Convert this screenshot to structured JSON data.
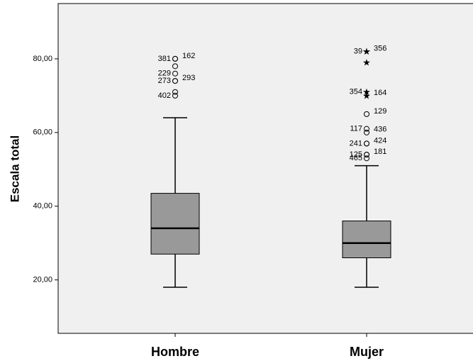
{
  "chart_data": {
    "type": "box",
    "y_label": "Escala total",
    "categories": [
      "Hombre",
      "Mujer"
    ],
    "series": [
      {
        "name": "Hombre",
        "whislo": 18,
        "q1": 27,
        "median": 34,
        "q3": 43.5,
        "whishi": 64,
        "outliers": [
          {
            "value": 80,
            "label": "162"
          },
          {
            "value": 80,
            "label": "381"
          },
          {
            "value": 78
          },
          {
            "value": 76,
            "label": "229"
          },
          {
            "value": 74,
            "label": "293"
          },
          {
            "value": 74,
            "label": "273"
          },
          {
            "value": 71
          },
          {
            "value": 70,
            "label": "402"
          }
        ],
        "extremes": []
      },
      {
        "name": "Mujer",
        "whislo": 18,
        "q1": 26,
        "median": 30,
        "q3": 36,
        "whishi": 51,
        "outliers": [
          {
            "value": 65,
            "label": "129"
          },
          {
            "value": 61,
            "label": "117"
          },
          {
            "value": 60,
            "label": "436"
          },
          {
            "value": 57,
            "label": "241"
          },
          {
            "value": 57,
            "label": "424"
          },
          {
            "value": 54,
            "label": "125"
          },
          {
            "value": 54,
            "label": "181"
          },
          {
            "value": 53,
            "label": "465"
          }
        ],
        "extremes": [
          {
            "value": 82,
            "label": "356"
          },
          {
            "value": 82,
            "label": "39"
          },
          {
            "value": 79
          },
          {
            "value": 71,
            "label": "354"
          },
          {
            "value": 70,
            "label": "164"
          }
        ]
      }
    ],
    "color": "#999999",
    "background": "#f0f0f0",
    "ylim": [
      5.5,
      95
    ],
    "yticks": [
      {
        "value": 20,
        "label": "20,00"
      },
      {
        "value": 40,
        "label": "40,00"
      },
      {
        "value": 60,
        "label": "60,00"
      },
      {
        "value": 80,
        "label": "80,00"
      }
    ]
  }
}
